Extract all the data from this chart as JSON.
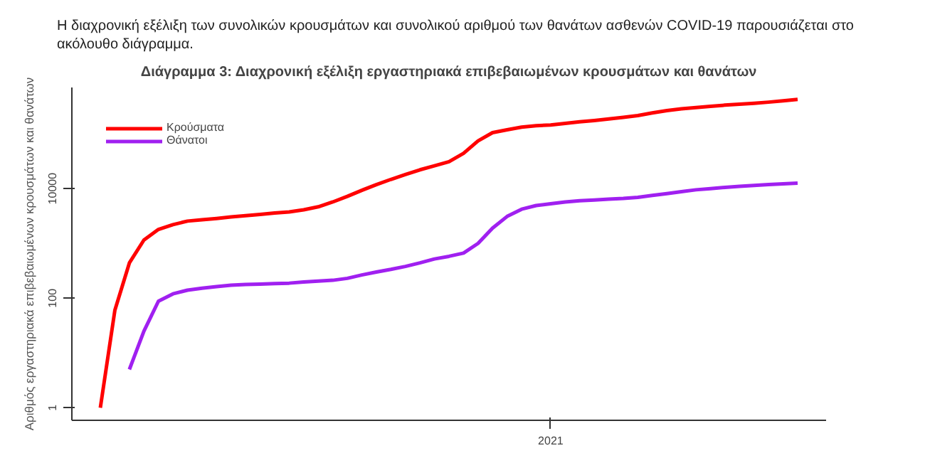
{
  "chart_data": {
    "type": "line",
    "title": "Διάγραμμα 3: Διαχρονική εξέλιξη εργαστηριακά επιβεβαιωμένων κρουσμάτων και θανάτων",
    "annotations": [
      "Η διαχρονική εξέλιξη των συνολικών κρουσμάτων και συνολικού αριθμού των θανάτων ασθενών COVID-19 παρουσιάζεται στο ακόλουθο διάγραμμα.",
      "2021"
    ],
    "ylabel": "Αριθμός εργαστηριακά επιβεβαιωμένων κρουσμάτων και θανάτων",
    "log": true,
    "legend": "top left",
    "line_style": "solid",
    "categories": [
      null,
      null,
      null,
      null,
      null,
      null,
      null,
      null,
      null,
      null,
      null,
      null,
      null,
      null,
      null,
      null,
      null,
      null,
      null,
      null,
      null,
      null,
      null,
      null,
      null,
      null,
      null,
      null,
      null,
      null,
      null,
      null,
      null,
      null,
      null,
      null,
      null,
      null,
      null,
      null,
      null,
      null,
      null,
      null,
      null,
      null,
      null,
      null,
      null
    ],
    "ylim": [
      0.59,
      700000
    ],
    "yticks": [
      1,
      100,
      10000
    ],
    "series": [
      {
        "name": "Κρούσματα",
        "color": "#ff0000",
        "values": [
          1,
          60,
          440,
          1150,
          1800,
          2200,
          2550,
          2700,
          2850,
          3030,
          3200,
          3380,
          3580,
          3750,
          4100,
          4650,
          5700,
          7200,
          9300,
          11800,
          14700,
          18000,
          22000,
          26000,
          31000,
          44000,
          74000,
          105000,
          118000,
          132000,
          140000,
          145000,
          155000,
          165000,
          175000,
          187000,
          200000,
          215000,
          240000,
          265000,
          285000,
          300000,
          318000,
          333000,
          346000,
          360000,
          378000,
          400000,
          425000
        ]
      },
      {
        "name": "Θάνατοι",
        "color": "#a020f0",
        "values": [
          null,
          null,
          5,
          25,
          88,
          120,
          140,
          152,
          162,
          172,
          178,
          181,
          185,
          188,
          197,
          205,
          212,
          230,
          265,
          300,
          335,
          380,
          440,
          520,
          580,
          665,
          1000,
          1900,
          3100,
          4200,
          4900,
          5300,
          5700,
          6000,
          6200,
          6400,
          6600,
          6900,
          7500,
          8100,
          8800,
          9500,
          10000,
          10500,
          11000,
          11400,
          11800,
          12200,
          12600
        ]
      }
    ]
  }
}
